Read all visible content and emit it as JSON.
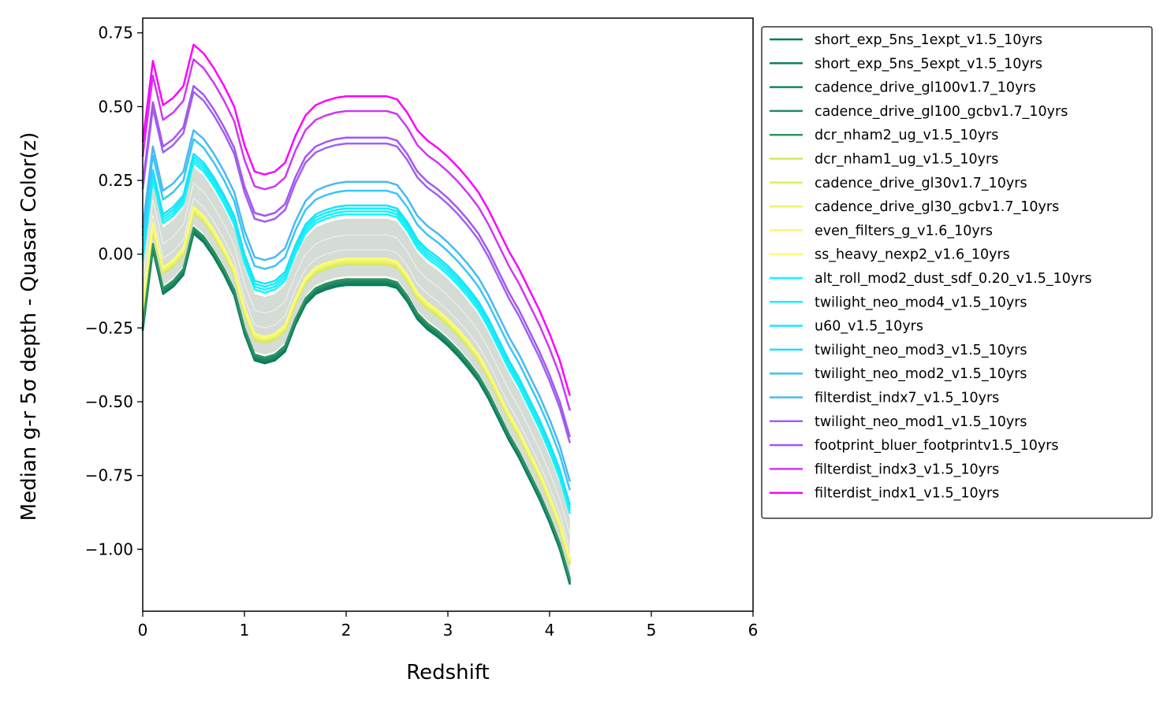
{
  "chart_data": {
    "type": "line",
    "xlabel": "Redshift",
    "ylabel": "Median g-r 5σ depth - Quasar Color(z)",
    "xlim": [
      0,
      6
    ],
    "ylim": [
      -1.21,
      0.8
    ],
    "xticks": [
      0,
      1,
      2,
      3,
      4,
      5,
      6
    ],
    "xtick_labels": [
      "0",
      "1",
      "2",
      "3",
      "4",
      "5",
      "6"
    ],
    "yticks": [
      0.75,
      0.5,
      0.25,
      0.0,
      -0.25,
      -0.5,
      -0.75,
      -1.0
    ],
    "ytick_labels": [
      "0.75",
      "0.50",
      "0.25",
      "0.00",
      "−0.25",
      "−0.50",
      "−0.75",
      "−1.00"
    ],
    "grid": false,
    "legend_position": "outside-right",
    "x": [
      0,
      0.1,
      0.2,
      0.3,
      0.4,
      0.5,
      0.6,
      0.7,
      0.8,
      0.9,
      1.0,
      1.1,
      1.2,
      1.3,
      1.4,
      1.5,
      1.6,
      1.7,
      1.8,
      1.9,
      2.0,
      2.1,
      2.2,
      2.3,
      2.4,
      2.5,
      2.6,
      2.7,
      2.8,
      2.9,
      3.0,
      3.1,
      3.2,
      3.3,
      3.4,
      3.5,
      3.6,
      3.7,
      3.8,
      3.9,
      4.0,
      4.1,
      4.2
    ],
    "base_curve": [
      -0.26,
      0.015,
      -0.135,
      -0.11,
      -0.07,
      0.07,
      0.04,
      -0.01,
      -0.07,
      -0.14,
      -0.27,
      -0.36,
      -0.37,
      -0.36,
      -0.33,
      -0.24,
      -0.17,
      -0.135,
      -0.12,
      -0.11,
      -0.105,
      -0.105,
      -0.105,
      -0.105,
      -0.105,
      -0.115,
      -0.16,
      -0.22,
      -0.255,
      -0.28,
      -0.31,
      -0.345,
      -0.385,
      -0.43,
      -0.49,
      -0.56,
      -0.63,
      -0.69,
      -0.76,
      -0.83,
      -0.91,
      -1.0,
      -1.12
    ],
    "band": {
      "low_offset": 0.03,
      "high_offset": 0.225,
      "color": "#d5dbd5"
    },
    "series": [
      {
        "name": "short_exp_5ns_1expt_v1.5_10yrs",
        "offset": 0.0,
        "color": "#037b5b"
      },
      {
        "name": "short_exp_5ns_5expt_v1.5_10yrs",
        "offset": 0.005,
        "color": "#0f7f5c"
      },
      {
        "name": "cadence_drive_gl100v1.7_10yrs",
        "offset": 0.01,
        "color": "#18855f"
      },
      {
        "name": "cadence_drive_gl100_gcbv1.7_10yrs",
        "offset": 0.015,
        "color": "#238b62"
      },
      {
        "name": "dcr_nham2_ug_v1.5_10yrs",
        "offset": 0.02,
        "color": "#2f9460"
      },
      {
        "name": "dcr_nham1_ug_v1.5_10yrs",
        "offset": 0.07,
        "color": "#d4e95d"
      },
      {
        "name": "cadence_drive_gl30v1.7_10yrs",
        "offset": 0.075,
        "color": "#e0ed62"
      },
      {
        "name": "cadence_drive_gl30_gcbv1.7_10yrs",
        "offset": 0.08,
        "color": "#ecf36a"
      },
      {
        "name": "even_filters_g_v1.6_10yrs",
        "offset": 0.085,
        "color": "#f6f772"
      },
      {
        "name": "ss_heavy_nexp2_v1.6_10yrs",
        "offset": 0.09,
        "color": "#fbfb78"
      },
      {
        "name": "alt_roll_mod2_dust_sdf_0.20_v1.5_10yrs",
        "offset": 0.24,
        "color": "#17f6f9"
      },
      {
        "name": "twilight_neo_mod4_v1.5_10yrs",
        "offset": 0.25,
        "color": "#17f1f9"
      },
      {
        "name": "u60_v1.5_10yrs",
        "offset": 0.26,
        "color": "#19eaf9"
      },
      {
        "name": "twilight_neo_mod3_v1.5_10yrs",
        "offset": 0.27,
        "color": "#1ce0f9"
      },
      {
        "name": "twilight_neo_mod2_v1.5_10yrs",
        "offset": 0.32,
        "color": "#38c6f7"
      },
      {
        "name": "filterdist_indx7_v1.5_10yrs",
        "offset": 0.35,
        "color": "#4ab8f4"
      },
      {
        "name": "twilight_neo_mod1_v1.5_10yrs",
        "offset": 0.48,
        "color": "#9d62f0"
      },
      {
        "name": "footprint_bluer_footprintv1.5_10yrs",
        "offset": 0.5,
        "color": "#a656f0"
      },
      {
        "name": "filterdist_indx3_v1.5_10yrs",
        "offset": 0.59,
        "color": "#ce38f4"
      },
      {
        "name": "filterdist_indx1_v1.5_10yrs",
        "offset": 0.64,
        "color": "#ff00ff"
      }
    ]
  }
}
